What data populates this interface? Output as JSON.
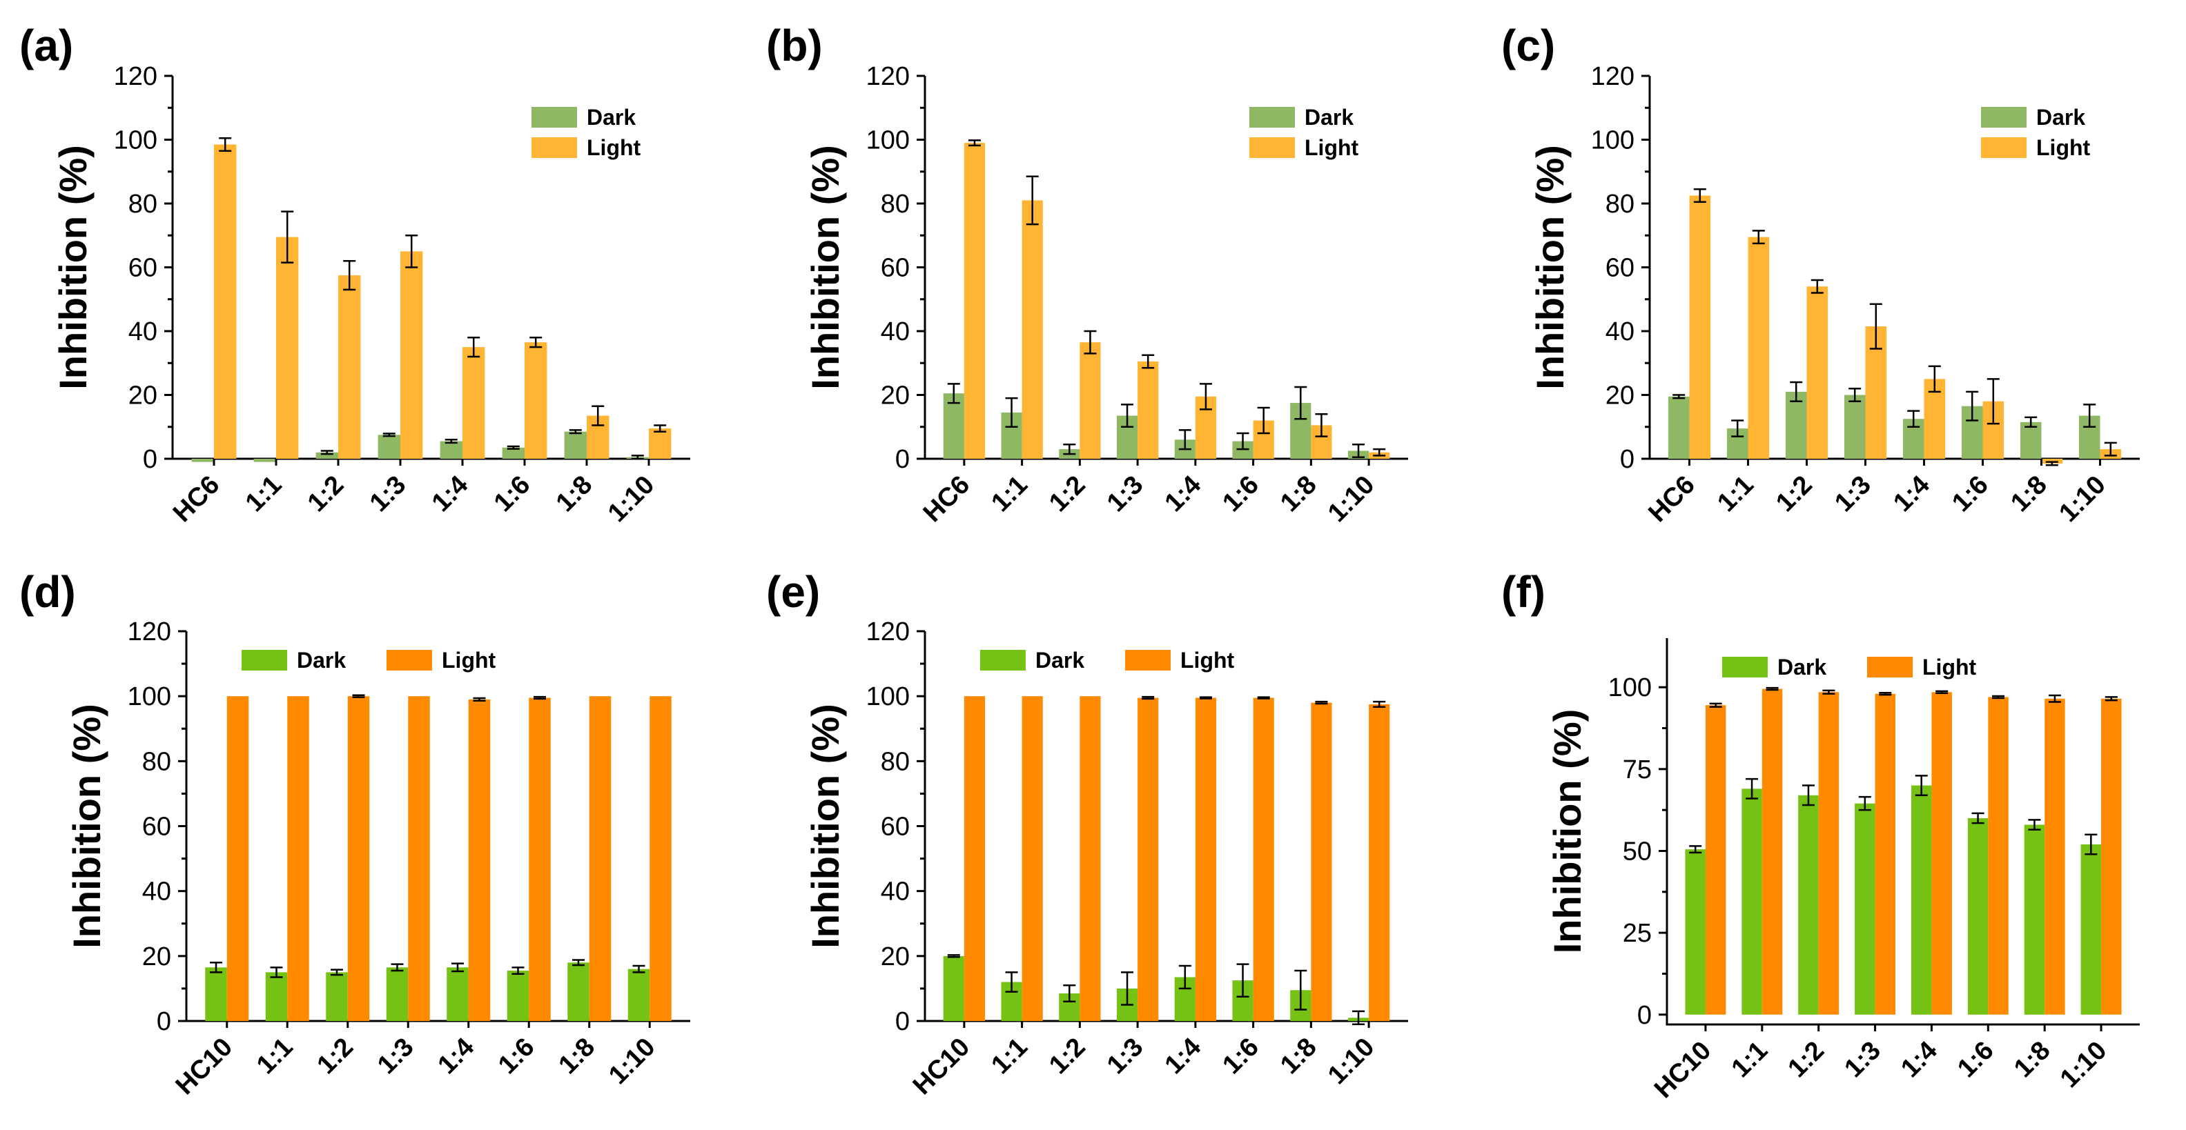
{
  "colors": {
    "dark_muted": "#8fb865",
    "light_muted": "#ffb533",
    "dark_vivid": "#76c214",
    "light_vivid": "#ff8a00"
  },
  "chart_data": [
    {
      "panel": "(a)",
      "type": "bar",
      "ylabel": "Inhibition (%)",
      "ylim": [
        0,
        120
      ],
      "yticks": [
        0,
        20,
        40,
        60,
        80,
        100,
        120
      ],
      "categories": [
        "HC6",
        "1:1",
        "1:2",
        "1:3",
        "1:4",
        "1:6",
        "1:8",
        "1:10"
      ],
      "legend_position": "top-right",
      "legend_layout": "vertical",
      "palette": "muted",
      "series": [
        {
          "name": "Dark",
          "values": [
            -1,
            -1,
            2,
            7.5,
            5.5,
            3.5,
            8.5,
            0.5
          ],
          "errors": [
            0,
            0,
            0.5,
            0.4,
            0.5,
            0.4,
            0.5,
            0.5
          ]
        },
        {
          "name": "Light",
          "values": [
            98.5,
            69.5,
            57.5,
            65,
            35,
            36.5,
            13.5,
            9.5
          ],
          "errors": [
            2,
            8,
            4.5,
            5,
            3,
            1.5,
            3,
            1
          ]
        }
      ]
    },
    {
      "panel": "(b)",
      "type": "bar",
      "ylabel": "Inhibition (%)",
      "ylim": [
        0,
        120
      ],
      "yticks": [
        0,
        20,
        40,
        60,
        80,
        100,
        120
      ],
      "categories": [
        "HC6",
        "1:1",
        "1:2",
        "1:3",
        "1:4",
        "1:6",
        "1:8",
        "1:10"
      ],
      "legend_position": "top-right",
      "legend_layout": "vertical",
      "palette": "muted",
      "series": [
        {
          "name": "Dark",
          "values": [
            20.5,
            14.5,
            3,
            13.5,
            6,
            5.5,
            17.5,
            2.5
          ],
          "errors": [
            3,
            4.5,
            1.5,
            3.5,
            3,
            2.5,
            5,
            2
          ]
        },
        {
          "name": "Light",
          "values": [
            99,
            81,
            36.5,
            30.5,
            19.5,
            12,
            10.5,
            2
          ],
          "errors": [
            0.8,
            7.5,
            3.5,
            2,
            4,
            4,
            3.5,
            1
          ]
        }
      ]
    },
    {
      "panel": "(c)",
      "type": "bar",
      "ylabel": "Inhibition (%)",
      "ylim": [
        0,
        120
      ],
      "yticks": [
        0,
        20,
        40,
        60,
        80,
        100,
        120
      ],
      "categories": [
        "HC6",
        "1:1",
        "1:2",
        "1:3",
        "1:4",
        "1:6",
        "1:8",
        "1:10"
      ],
      "legend_position": "top-right",
      "legend_layout": "vertical",
      "palette": "muted",
      "series": [
        {
          "name": "Dark",
          "values": [
            19.5,
            9.5,
            21,
            20,
            12.5,
            16.5,
            11.5,
            13.5
          ],
          "errors": [
            0.5,
            2.5,
            3,
            2,
            2.5,
            4.5,
            1.5,
            3.5
          ]
        },
        {
          "name": "Light",
          "values": [
            82.5,
            69.5,
            54,
            41.5,
            25,
            18,
            -1.5,
            3
          ],
          "errors": [
            2,
            2,
            2,
            7,
            4,
            7,
            0.5,
            2
          ]
        }
      ]
    },
    {
      "panel": "(d)",
      "type": "bar",
      "ylabel": "Inhibition (%)",
      "ylim": [
        0,
        120
      ],
      "yticks": [
        0,
        20,
        40,
        60,
        80,
        100,
        120
      ],
      "categories": [
        "HC10",
        "1:1",
        "1:2",
        "1:3",
        "1:4",
        "1:6",
        "1:8",
        "1:10"
      ],
      "legend_position": "top",
      "legend_layout": "horizontal",
      "palette": "vivid",
      "series": [
        {
          "name": "Dark",
          "values": [
            16.5,
            15,
            15,
            16.5,
            16.5,
            15.5,
            18,
            16
          ],
          "errors": [
            1.5,
            1.5,
            0.8,
            1,
            1.2,
            1,
            0.8,
            1
          ]
        },
        {
          "name": "Light",
          "values": [
            100,
            100,
            100,
            100,
            99,
            99.5,
            100,
            100
          ],
          "errors": [
            0,
            0,
            0.3,
            0,
            0.4,
            0.3,
            0,
            0
          ]
        }
      ]
    },
    {
      "panel": "(e)",
      "type": "bar",
      "ylabel": "Inhibition (%)",
      "ylim": [
        0,
        120
      ],
      "yticks": [
        0,
        20,
        40,
        60,
        80,
        100,
        120
      ],
      "categories": [
        "HC10",
        "1:1",
        "1:2",
        "1:3",
        "1:4",
        "1:6",
        "1:8",
        "1:10"
      ],
      "legend_position": "top",
      "legend_layout": "horizontal",
      "palette": "vivid",
      "series": [
        {
          "name": "Dark",
          "values": [
            20,
            12,
            8.5,
            10,
            13.5,
            12.5,
            9.5,
            1
          ],
          "errors": [
            0.3,
            3,
            2.5,
            5,
            3.5,
            5,
            6,
            2
          ]
        },
        {
          "name": "Light",
          "values": [
            100,
            100,
            100,
            99.5,
            99.5,
            99.5,
            98,
            97.5
          ],
          "errors": [
            0,
            0,
            0,
            0.3,
            0.2,
            0.2,
            0.3,
            0.8
          ]
        }
      ]
    },
    {
      "panel": "(f)",
      "type": "bar",
      "ylabel": "Inhibition (%)",
      "ylim": [
        -3,
        115
      ],
      "yticks": [
        0,
        25,
        50,
        75,
        100
      ],
      "categories": [
        "HC10",
        "1:1",
        "1:2",
        "1:3",
        "1:4",
        "1:6",
        "1:8",
        "1:10"
      ],
      "legend_position": "top",
      "legend_layout": "horizontal",
      "palette": "vivid",
      "series": [
        {
          "name": "Dark",
          "values": [
            50.5,
            69,
            67,
            64.5,
            70,
            60,
            58,
            52
          ],
          "errors": [
            1,
            3,
            3,
            2,
            3,
            1.5,
            1.5,
            3
          ]
        },
        {
          "name": "Light",
          "values": [
            94.5,
            99.5,
            98.5,
            98,
            98.5,
            97,
            96.5,
            96.5
          ],
          "errors": [
            0.5,
            0.3,
            0.5,
            0.3,
            0.3,
            0.3,
            1,
            0.5
          ]
        }
      ]
    }
  ]
}
